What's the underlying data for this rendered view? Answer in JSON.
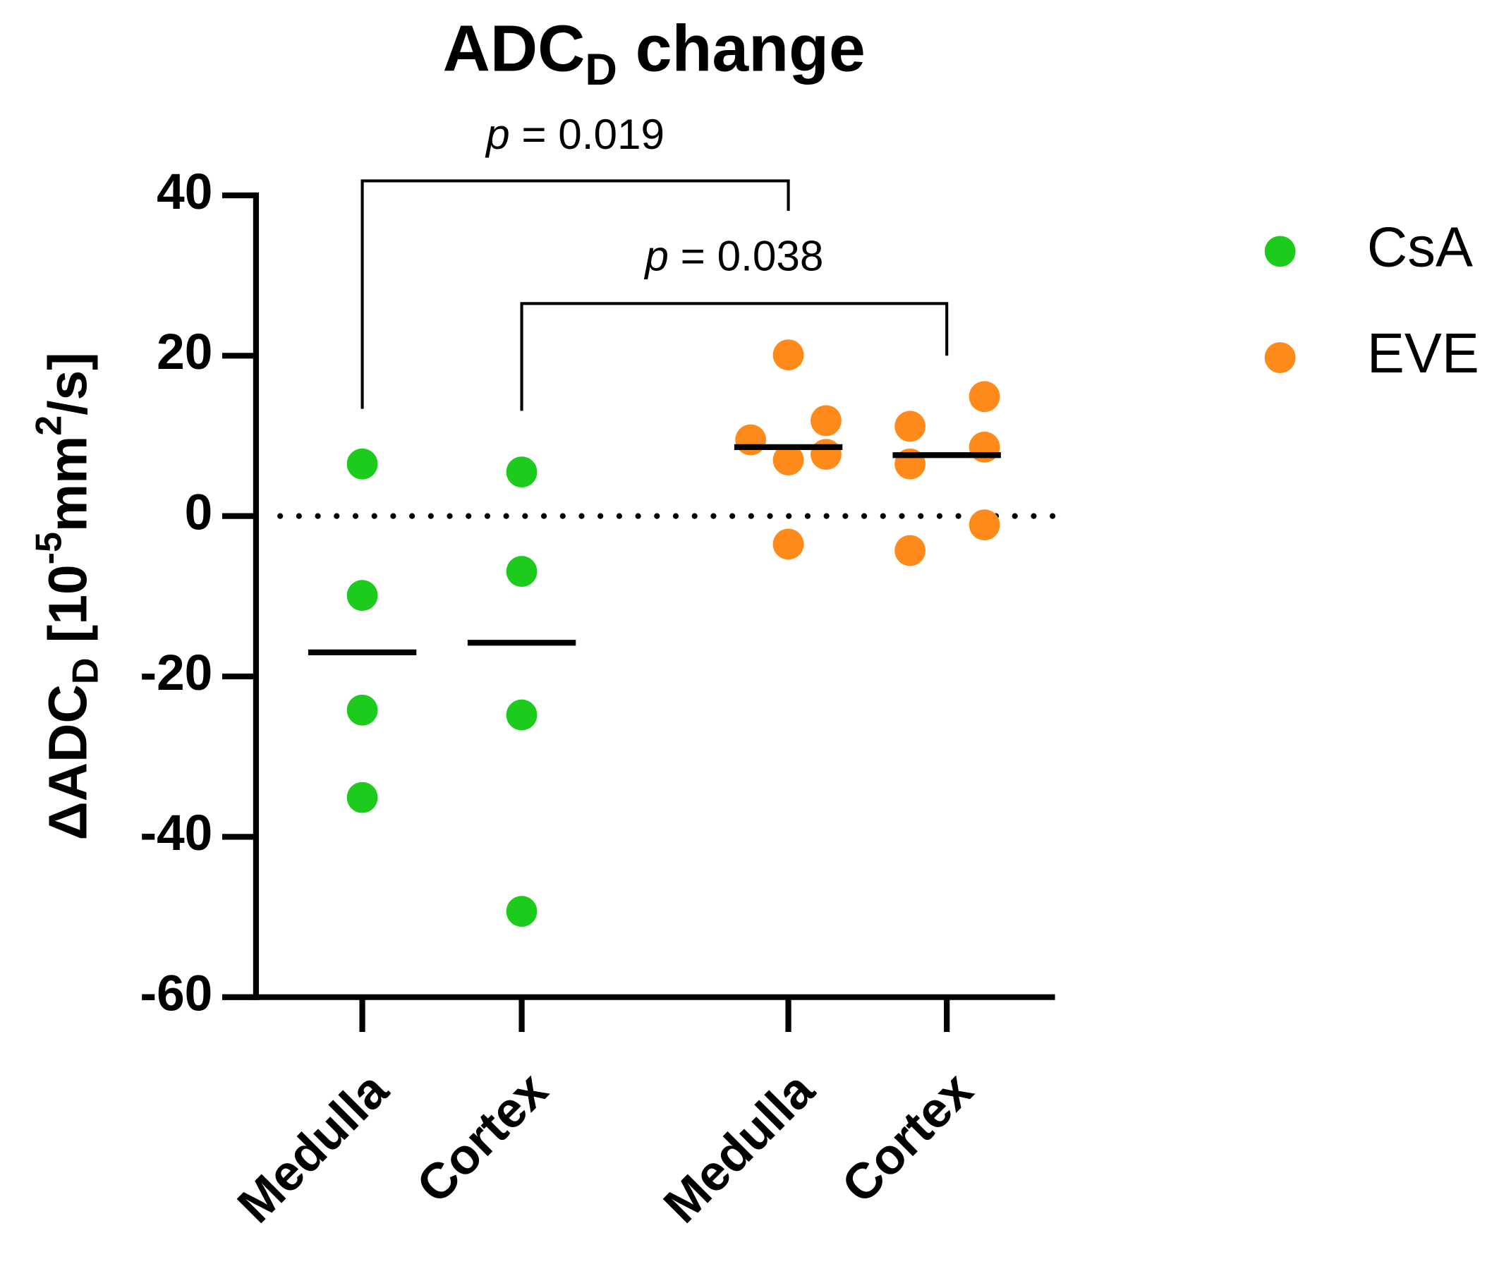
{
  "chart_data": {
    "type": "scatter",
    "title": {
      "main": "ADC",
      "sub": "D",
      "rest": " change"
    },
    "y_label": [
      {
        "text": "ΔADC"
      },
      {
        "text": "D",
        "script": "sub"
      },
      {
        "text": " [10"
      },
      {
        "text": "-5",
        "script": "sup"
      },
      {
        "text": "mm"
      },
      {
        "text": "2",
        "script": "sup"
      },
      {
        "text": "/s]"
      }
    ],
    "categories": [
      "Medulla",
      "Cortex",
      "Medulla",
      "Cortex"
    ],
    "series": [
      {
        "name": "CsA",
        "color": "#1ccb1c",
        "values": [
          [
            6.5,
            -9.9,
            -24.2,
            -35.1
          ],
          [
            5.5,
            -6.9,
            -24.8,
            -49.3
          ],
          null,
          null
        ],
        "medians": [
          -17,
          -15.8,
          null,
          null
        ]
      },
      {
        "name": "EVE",
        "color": "#ff8a1c",
        "values": [
          null,
          null,
          [
            20.1,
            11.9,
            9.5,
            7.7,
            7.0,
            -3.5
          ],
          [
            14.9,
            11.2,
            8.6,
            6.5,
            -1.1,
            -4.3
          ]
        ],
        "medians": [
          null,
          null,
          8.6,
          7.6
        ]
      }
    ],
    "ylim": [
      -60,
      40
    ],
    "yticks": [
      -60,
      -40,
      -20,
      0,
      20,
      40
    ],
    "reference_line": 0,
    "annotations": [
      {
        "symbol": "p",
        "text": " = 0.019",
        "from": 0,
        "to": 2
      },
      {
        "symbol": "p",
        "text": " = 0.038",
        "from": 1,
        "to": 3
      }
    ],
    "legend": "upper right"
  }
}
